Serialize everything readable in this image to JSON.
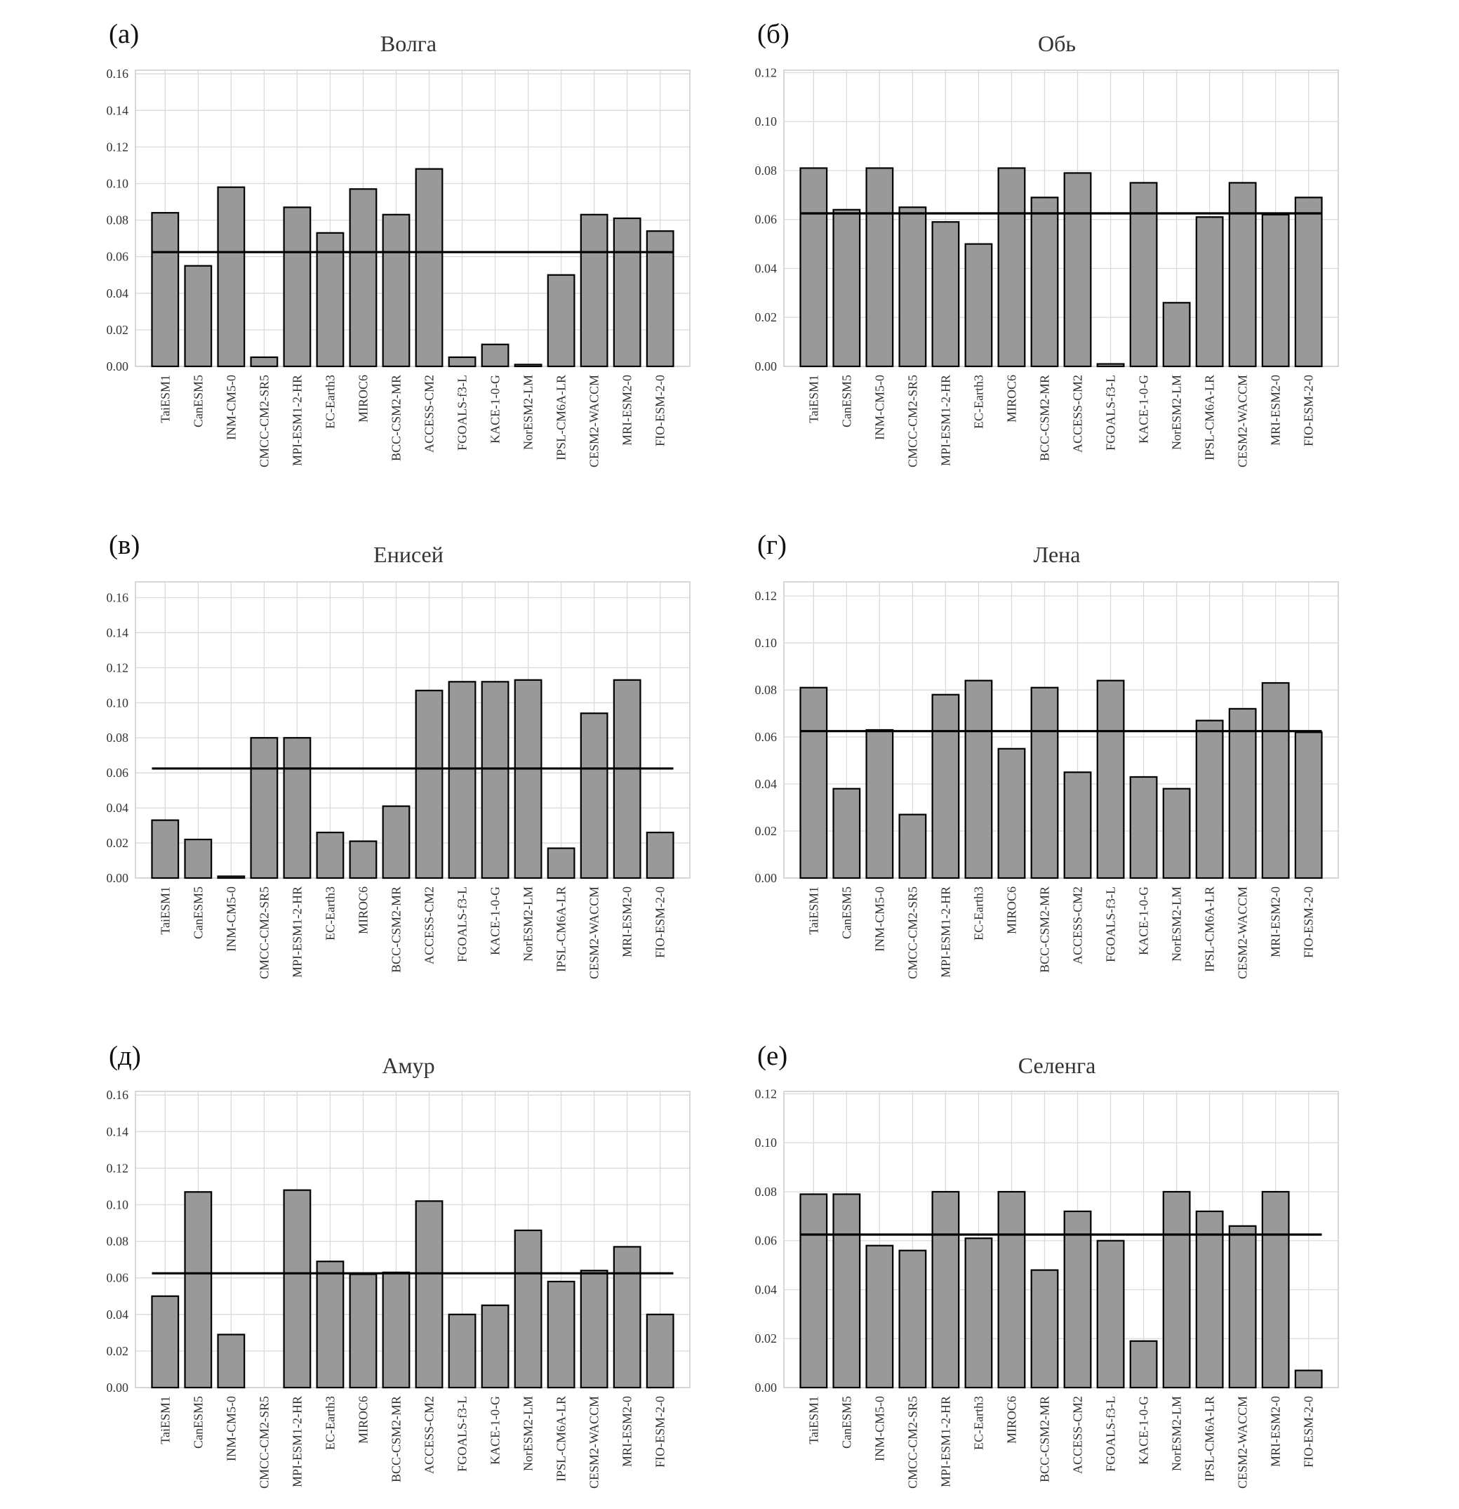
{
  "colors": {
    "bar_fill": "#999999",
    "bar_edge": "#000000",
    "mean_line": "#000000",
    "grid": "#dadada",
    "axes_edge": "#cccccc"
  },
  "chart_data": [
    {
      "type": "bar",
      "panel": "(а)",
      "title": "Волга",
      "categories": [
        "TaiESM1",
        "CanESM5",
        "INM-CM5-0",
        "CMCC-CM2-SR5",
        "MPI-ESM1-2-HR",
        "EC-Earth3",
        "MIROC6",
        "BCC-CSM2-MR",
        "ACCESS-CM2",
        "FGOALS-f3-L",
        "KACE-1-0-G",
        "NorESM2-LM",
        "IPSL-CM6A-LR",
        "CESM2-WACCM",
        "MRI-ESM2-0",
        "FIO-ESM-2-0"
      ],
      "values": [
        0.084,
        0.055,
        0.098,
        0.005,
        0.087,
        0.073,
        0.097,
        0.083,
        0.108,
        0.005,
        0.012,
        0.001,
        0.05,
        0.083,
        0.081,
        0.074
      ],
      "mean_line": 0.0625,
      "ylim": [
        0,
        0.162
      ],
      "yticks": [
        0.0,
        0.02,
        0.04,
        0.06,
        0.08,
        0.1,
        0.12,
        0.14,
        0.16
      ],
      "ytick_labels": [
        "0.00",
        "0.02",
        "0.04",
        "0.06",
        "0.08",
        "0.10",
        "0.12",
        "0.14",
        "0.16"
      ],
      "xlabel": "",
      "ylabel": "",
      "grid": true
    },
    {
      "type": "bar",
      "panel": "(б)",
      "title": "Обь",
      "categories": [
        "TaiESM1",
        "CanESM5",
        "INM-CM5-0",
        "CMCC-CM2-SR5",
        "MPI-ESM1-2-HR",
        "EC-Earth3",
        "MIROC6",
        "BCC-CSM2-MR",
        "ACCESS-CM2",
        "FGOALS-f3-L",
        "KACE-1-0-G",
        "NorESM2-LM",
        "IPSL-CM6A-LR",
        "CESM2-WACCM",
        "MRI-ESM2-0",
        "FIO-ESM-2-0"
      ],
      "values": [
        0.081,
        0.064,
        0.081,
        0.065,
        0.059,
        0.05,
        0.081,
        0.069,
        0.079,
        0.001,
        0.075,
        0.026,
        0.061,
        0.075,
        0.062,
        0.069
      ],
      "mean_line": 0.0625,
      "ylim": [
        0,
        0.121
      ],
      "yticks": [
        0.0,
        0.02,
        0.04,
        0.06,
        0.08,
        0.1,
        0.12
      ],
      "ytick_labels": [
        "0.00",
        "0.02",
        "0.04",
        "0.06",
        "0.08",
        "0.10",
        "0.12"
      ],
      "xlabel": "",
      "ylabel": "",
      "grid": true
    },
    {
      "type": "bar",
      "panel": "(в)",
      "title": "Енисей",
      "categories": [
        "TaiESM1",
        "CanESM5",
        "INM-CM5-0",
        "CMCC-CM2-SR5",
        "MPI-ESM1-2-HR",
        "EC-Earth3",
        "MIROC6",
        "BCC-CSM2-MR",
        "ACCESS-CM2",
        "FGOALS-f3-L",
        "KACE-1-0-G",
        "NorESM2-LM",
        "IPSL-CM6A-LR",
        "CESM2-WACCM",
        "MRI-ESM2-0",
        "FIO-ESM-2-0"
      ],
      "values": [
        0.033,
        0.022,
        0.001,
        0.08,
        0.08,
        0.026,
        0.021,
        0.041,
        0.107,
        0.112,
        0.112,
        0.113,
        0.017,
        0.094,
        0.113,
        0.026
      ],
      "mean_line": 0.0625,
      "ylim": [
        0,
        0.169
      ],
      "yticks": [
        0.0,
        0.02,
        0.04,
        0.06,
        0.08,
        0.1,
        0.12,
        0.14,
        0.16
      ],
      "ytick_labels": [
        "0.00",
        "0.02",
        "0.04",
        "0.06",
        "0.08",
        "0.10",
        "0.12",
        "0.14",
        "0.16"
      ],
      "xlabel": "",
      "ylabel": "",
      "grid": true
    },
    {
      "type": "bar",
      "panel": "(г)",
      "title": "Лена",
      "categories": [
        "TaiESM1",
        "CanESM5",
        "INM-CM5-0",
        "CMCC-CM2-SR5",
        "MPI-ESM1-2-HR",
        "EC-Earth3",
        "MIROC6",
        "BCC-CSM2-MR",
        "ACCESS-CM2",
        "FGOALS-f3-L",
        "KACE-1-0-G",
        "NorESM2-LM",
        "IPSL-CM6A-LR",
        "CESM2-WACCM",
        "MRI-ESM2-0",
        "FIO-ESM-2-0"
      ],
      "values": [
        0.081,
        0.038,
        0.063,
        0.027,
        0.078,
        0.084,
        0.055,
        0.081,
        0.045,
        0.084,
        0.043,
        0.038,
        0.067,
        0.072,
        0.083,
        0.062
      ],
      "mean_line": 0.0625,
      "ylim": [
        0,
        0.126
      ],
      "yticks": [
        0.0,
        0.02,
        0.04,
        0.06,
        0.08,
        0.1,
        0.12
      ],
      "ytick_labels": [
        "0.00",
        "0.02",
        "0.04",
        "0.06",
        "0.08",
        "0.10",
        "0.12"
      ],
      "xlabel": "",
      "ylabel": "",
      "grid": true
    },
    {
      "type": "bar",
      "panel": "(д)",
      "title": "Амур",
      "categories": [
        "TaiESM1",
        "CanESM5",
        "INM-CM5-0",
        "CMCC-CM2-SR5",
        "MPI-ESM1-2-HR",
        "EC-Earth3",
        "MIROC6",
        "BCC-CSM2-MR",
        "ACCESS-CM2",
        "FGOALS-f3-L",
        "KACE-1-0-G",
        "NorESM2-LM",
        "IPSL-CM6A-LR",
        "CESM2-WACCM",
        "MRI-ESM2-0",
        "FIO-ESM-2-0"
      ],
      "values": [
        0.05,
        0.107,
        0.029,
        0.0,
        0.108,
        0.069,
        0.062,
        0.063,
        0.102,
        0.04,
        0.045,
        0.086,
        0.058,
        0.064,
        0.077,
        0.04
      ],
      "mean_line": 0.0625,
      "ylim": [
        0,
        0.162
      ],
      "yticks": [
        0.0,
        0.02,
        0.04,
        0.06,
        0.08,
        0.1,
        0.12,
        0.14,
        0.16
      ],
      "ytick_labels": [
        "0.00",
        "0.02",
        "0.04",
        "0.06",
        "0.08",
        "0.10",
        "0.12",
        "0.14",
        "0.16"
      ],
      "xlabel": "",
      "ylabel": "",
      "grid": true
    },
    {
      "type": "bar",
      "panel": "(е)",
      "title": "Селенга",
      "categories": [
        "TaiESM1",
        "CanESM5",
        "INM-CM5-0",
        "CMCC-CM2-SR5",
        "MPI-ESM1-2-HR",
        "EC-Earth3",
        "MIROC6",
        "BCC-CSM2-MR",
        "ACCESS-CM2",
        "FGOALS-f3-L",
        "KACE-1-0-G",
        "NorESM2-LM",
        "IPSL-CM6A-LR",
        "CESM2-WACCM",
        "MRI-ESM2-0",
        "FIO-ESM-2-0"
      ],
      "values": [
        0.079,
        0.079,
        0.058,
        0.056,
        0.08,
        0.061,
        0.08,
        0.048,
        0.072,
        0.06,
        0.019,
        0.08,
        0.072,
        0.066,
        0.08,
        0.007
      ],
      "mean_line": 0.0625,
      "ylim": [
        0,
        0.121
      ],
      "yticks": [
        0.0,
        0.02,
        0.04,
        0.06,
        0.08,
        0.1,
        0.12
      ],
      "ytick_labels": [
        "0.00",
        "0.02",
        "0.04",
        "0.06",
        "0.08",
        "0.10",
        "0.12"
      ],
      "xlabel": "",
      "ylabel": "",
      "grid": true
    }
  ]
}
